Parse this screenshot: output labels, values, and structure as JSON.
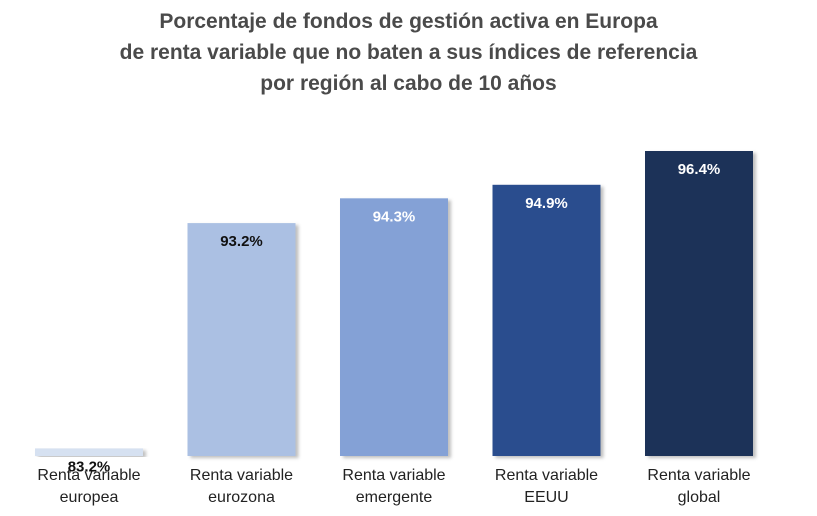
{
  "chart_data": {
    "type": "bar",
    "title_lines": [
      "Porcentaje de fondos de gestión activa en Europa",
      "de renta variable que no baten a sus índices de referencia",
      "por región al cabo de 10 años"
    ],
    "categories": [
      [
        "Renta variable",
        "europea"
      ],
      [
        "Renta variable",
        "eurozona"
      ],
      [
        "Renta variable",
        "emergente"
      ],
      [
        "Renta variable",
        "EEUU"
      ],
      [
        "Renta variable",
        "global"
      ]
    ],
    "values": [
      83.2,
      93.2,
      94.3,
      94.9,
      96.4
    ],
    "data_labels": [
      "83.2%",
      "93.2%",
      "94.3%",
      "94.9%",
      "96.4%"
    ],
    "colors": [
      "#d6e1f1",
      "#abc0e3",
      "#84a1d6",
      "#2c4d8e",
      "#1e3058"
    ],
    "label_colors": [
      "#111111",
      "#111111",
      "#ffffff",
      "#ffffff",
      "#ffffff"
    ],
    "xlabel": "",
    "ylabel": "",
    "grid": false,
    "legend": "none"
  }
}
